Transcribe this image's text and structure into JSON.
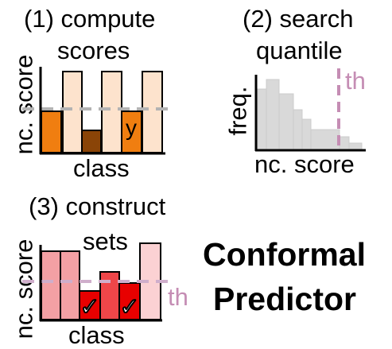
{
  "panel1": {
    "title_line1": "(1) compute",
    "title_line2": "scores",
    "ylabel": "nc. score",
    "xlabel": "class",
    "true_label": "y"
  },
  "panel2": {
    "title_line1": "(2) search",
    "title_line2": "quantile",
    "ylabel": "freq.",
    "xlabel": "nc. score",
    "threshold_label": "th"
  },
  "panel3": {
    "title_line1": "(3) construct",
    "title_line2": "sets",
    "ylabel": "nc. score",
    "xlabel": "class",
    "threshold_label": "th",
    "check_mark": "✓"
  },
  "main_title": {
    "line1": "Conformal",
    "line2": "Predictor"
  },
  "colors": {
    "orange": "#f07e10",
    "light_orange": "#fde3cd",
    "brown": "#8a4407",
    "hist_gray": "#d9d9d9",
    "threshold_pink": "#c58db4",
    "dashed_gray": "#b3b3b3",
    "pink_bar": "#f3a0a4",
    "red_bar": "#ef4649",
    "bright_red": "#e80000",
    "light_pink": "#fbd1d3"
  }
}
